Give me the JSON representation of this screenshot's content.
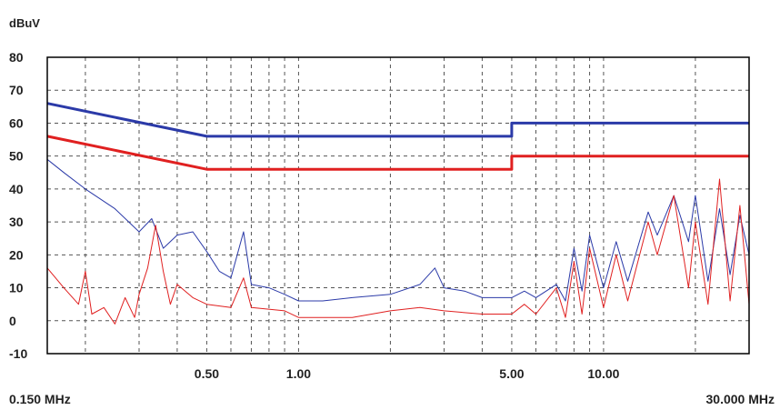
{
  "chart_data": {
    "type": "line",
    "ylabel": "dBuV",
    "x_start_label": "0.150 MHz",
    "x_stop_label": "30.000 MHz",
    "x_scale": "log",
    "xlim": [
      0.15,
      30.0
    ],
    "ylim": [
      -10,
      80
    ],
    "y_ticks": [
      80,
      70,
      60,
      50,
      40,
      30,
      20,
      10,
      0,
      -10
    ],
    "x_tick_labels": [
      {
        "x": 0.5,
        "label": "0.50"
      },
      {
        "x": 1.0,
        "label": "1.00"
      },
      {
        "x": 5.0,
        "label": "5.00"
      },
      {
        "x": 10.0,
        "label": "10.00"
      }
    ],
    "grid": true,
    "series": [
      {
        "color": "#2b3aa8",
        "kind": "limit",
        "points": [
          [
            0.15,
            66
          ],
          [
            0.5,
            56
          ],
          [
            5.0,
            56
          ],
          [
            5.0,
            60
          ],
          [
            30.0,
            60
          ]
        ]
      },
      {
        "color": "#e02020",
        "kind": "limit",
        "points": [
          [
            0.15,
            56
          ],
          [
            0.5,
            46
          ],
          [
            5.0,
            46
          ],
          [
            5.0,
            50
          ],
          [
            30.0,
            50
          ]
        ]
      },
      {
        "color": "#2b3aa8",
        "kind": "measurement",
        "points": [
          [
            0.15,
            49
          ],
          [
            0.17,
            45
          ],
          [
            0.2,
            40
          ],
          [
            0.25,
            34
          ],
          [
            0.3,
            27
          ],
          [
            0.33,
            31
          ],
          [
            0.36,
            22
          ],
          [
            0.4,
            26
          ],
          [
            0.45,
            27
          ],
          [
            0.5,
            21
          ],
          [
            0.55,
            15
          ],
          [
            0.6,
            13
          ],
          [
            0.66,
            27
          ],
          [
            0.7,
            11
          ],
          [
            0.8,
            10
          ],
          [
            0.9,
            8
          ],
          [
            1.0,
            6
          ],
          [
            1.2,
            6
          ],
          [
            1.5,
            7
          ],
          [
            2.0,
            8
          ],
          [
            2.5,
            11
          ],
          [
            2.8,
            16
          ],
          [
            3.0,
            10
          ],
          [
            3.5,
            9
          ],
          [
            4.0,
            7
          ],
          [
            4.5,
            7
          ],
          [
            5.0,
            7
          ],
          [
            5.5,
            9
          ],
          [
            6.0,
            7
          ],
          [
            7.0,
            11
          ],
          [
            7.5,
            6
          ],
          [
            8.0,
            22
          ],
          [
            8.5,
            9
          ],
          [
            9.0,
            26
          ],
          [
            10.0,
            10
          ],
          [
            11.0,
            24
          ],
          [
            12.0,
            12
          ],
          [
            14.0,
            33
          ],
          [
            15.0,
            26
          ],
          [
            17.0,
            38
          ],
          [
            19.0,
            24
          ],
          [
            20.0,
            38
          ],
          [
            22.0,
            12
          ],
          [
            24.0,
            34
          ],
          [
            26.0,
            14
          ],
          [
            28.0,
            32
          ],
          [
            30.0,
            20
          ]
        ]
      },
      {
        "color": "#e02020",
        "kind": "measurement",
        "points": [
          [
            0.15,
            16
          ],
          [
            0.17,
            10
          ],
          [
            0.19,
            5
          ],
          [
            0.2,
            15
          ],
          [
            0.21,
            2
          ],
          [
            0.23,
            4
          ],
          [
            0.25,
            -1
          ],
          [
            0.27,
            7
          ],
          [
            0.29,
            1
          ],
          [
            0.3,
            8
          ],
          [
            0.32,
            16
          ],
          [
            0.34,
            29
          ],
          [
            0.36,
            15
          ],
          [
            0.38,
            5
          ],
          [
            0.4,
            11
          ],
          [
            0.45,
            7
          ],
          [
            0.5,
            5
          ],
          [
            0.6,
            4
          ],
          [
            0.66,
            13
          ],
          [
            0.7,
            4
          ],
          [
            0.9,
            3
          ],
          [
            1.0,
            1
          ],
          [
            1.5,
            1
          ],
          [
            2.0,
            3
          ],
          [
            2.5,
            4
          ],
          [
            3.0,
            3
          ],
          [
            4.0,
            2
          ],
          [
            5.0,
            2
          ],
          [
            5.5,
            5
          ],
          [
            6.0,
            2
          ],
          [
            7.0,
            10
          ],
          [
            7.5,
            1
          ],
          [
            8.0,
            18
          ],
          [
            8.5,
            2
          ],
          [
            9.0,
            22
          ],
          [
            10.0,
            4
          ],
          [
            11.0,
            20
          ],
          [
            12.0,
            6
          ],
          [
            14.0,
            30
          ],
          [
            15.0,
            20
          ],
          [
            17.0,
            38
          ],
          [
            19.0,
            10
          ],
          [
            20.0,
            30
          ],
          [
            22.0,
            5
          ],
          [
            24.0,
            43
          ],
          [
            26.0,
            6
          ],
          [
            28.0,
            35
          ],
          [
            30.0,
            5
          ]
        ]
      }
    ]
  }
}
